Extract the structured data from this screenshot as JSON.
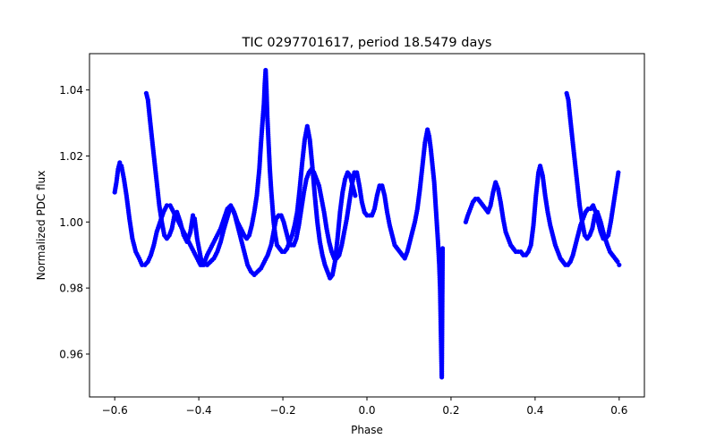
{
  "chart_data": {
    "type": "scatter",
    "title": "TIC 0297701617, period 18.5479 days",
    "xlabel": "Phase",
    "ylabel": "Normalized PDC flux",
    "xlim": [
      -0.66,
      0.66
    ],
    "ylim": [
      0.947,
      1.051
    ],
    "xticks": [
      -0.6,
      -0.4,
      -0.2,
      0.0,
      0.2,
      0.4,
      0.6
    ],
    "xtick_labels": [
      "−0.6",
      "−0.4",
      "−0.2",
      "0.0",
      "0.2",
      "0.4",
      "0.6"
    ],
    "yticks": [
      0.96,
      0.98,
      1.0,
      1.02,
      1.04
    ],
    "ytick_labels": [
      "0.96",
      "0.98",
      "1.00",
      "1.02",
      "1.04"
    ],
    "grid": false,
    "marker_color": "#0000ff",
    "series": [
      {
        "points": [
          [
            -0.6,
            1.009
          ],
          [
            -0.596,
            1.012
          ],
          [
            -0.592,
            1.016
          ],
          [
            -0.588,
            1.018
          ],
          [
            -0.584,
            1.017
          ],
          [
            -0.578,
            1.013
          ],
          [
            -0.572,
            1.008
          ],
          [
            -0.565,
            1.001
          ],
          [
            -0.558,
            0.995
          ],
          [
            -0.55,
            0.991
          ],
          [
            -0.542,
            0.989
          ],
          [
            -0.535,
            0.987
          ],
          [
            -0.528,
            0.987
          ],
          [
            -0.521,
            0.988
          ],
          [
            -0.514,
            0.99
          ],
          [
            -0.507,
            0.993
          ],
          [
            -0.5,
            0.997
          ],
          [
            -0.492,
            1.0
          ],
          [
            -0.484,
            1.003
          ],
          [
            -0.476,
            1.005
          ],
          [
            -0.468,
            1.005
          ],
          [
            -0.46,
            1.003
          ],
          [
            -0.452,
            1.001
          ],
          [
            -0.444,
            0.999
          ],
          [
            -0.436,
            0.997
          ],
          [
            -0.428,
            0.995
          ],
          [
            -0.42,
            0.993
          ],
          [
            -0.412,
            0.991
          ],
          [
            -0.404,
            0.989
          ],
          [
            -0.396,
            0.987
          ],
          [
            -0.388,
            0.987
          ],
          [
            -0.38,
            0.987
          ],
          [
            -0.372,
            0.988
          ],
          [
            -0.364,
            0.989
          ],
          [
            -0.356,
            0.991
          ],
          [
            -0.348,
            0.994
          ],
          [
            -0.34,
            0.998
          ],
          [
            -0.333,
            1.001
          ],
          [
            -0.326,
            1.004
          ],
          [
            -0.32,
            1.004
          ],
          [
            -0.314,
            1.002
          ],
          [
            -0.308,
            0.999
          ],
          [
            -0.3,
            0.995
          ],
          [
            -0.292,
            0.991
          ],
          [
            -0.284,
            0.987
          ],
          [
            -0.276,
            0.985
          ],
          [
            -0.268,
            0.984
          ],
          [
            -0.26,
            0.985
          ],
          [
            -0.252,
            0.986
          ],
          [
            -0.244,
            0.988
          ],
          [
            -0.236,
            0.99
          ],
          [
            -0.228,
            0.993
          ],
          [
            -0.222,
            0.997
          ],
          [
            -0.216,
            1.001
          ],
          [
            -0.21,
            1.002
          ],
          [
            -0.204,
            1.002
          ],
          [
            -0.198,
            1.0
          ],
          [
            -0.192,
            0.997
          ],
          [
            -0.186,
            0.994
          ],
          [
            -0.18,
            0.993
          ],
          [
            -0.174,
            0.993
          ],
          [
            -0.168,
            0.995
          ],
          [
            -0.162,
            0.999
          ],
          [
            -0.156,
            1.004
          ],
          [
            -0.15,
            1.009
          ],
          [
            -0.144,
            1.013
          ],
          [
            -0.138,
            1.015
          ],
          [
            -0.132,
            1.016
          ],
          [
            -0.126,
            1.015
          ],
          [
            -0.12,
            1.013
          ],
          [
            -0.114,
            1.011
          ],
          [
            -0.108,
            1.007
          ],
          [
            -0.102,
            1.003
          ],
          [
            -0.096,
            0.998
          ],
          [
            -0.09,
            0.994
          ],
          [
            -0.084,
            0.991
          ],
          [
            -0.078,
            0.989
          ],
          [
            -0.072,
            0.989
          ],
          [
            -0.066,
            0.99
          ],
          [
            -0.06,
            0.993
          ],
          [
            -0.054,
            0.997
          ],
          [
            -0.048,
            1.001
          ],
          [
            -0.042,
            1.006
          ],
          [
            -0.036,
            1.011
          ],
          [
            -0.03,
            1.015
          ],
          [
            -0.024,
            1.015
          ],
          [
            -0.018,
            1.011
          ],
          [
            -0.012,
            1.006
          ],
          [
            -0.006,
            1.003
          ],
          [
            0.0,
            1.002
          ],
          [
            0.006,
            1.002
          ],
          [
            0.012,
            1.002
          ],
          [
            0.018,
            1.004
          ],
          [
            0.024,
            1.008
          ],
          [
            0.03,
            1.011
          ],
          [
            0.036,
            1.011
          ],
          [
            0.042,
            1.008
          ],
          [
            0.048,
            1.003
          ],
          [
            0.054,
            0.999
          ],
          [
            0.06,
            0.996
          ],
          [
            0.066,
            0.993
          ],
          [
            0.072,
            0.992
          ],
          [
            0.078,
            0.991
          ],
          [
            0.084,
            0.99
          ],
          [
            0.09,
            0.989
          ],
          [
            0.096,
            0.991
          ],
          [
            0.102,
            0.994
          ],
          [
            0.108,
            0.997
          ],
          [
            0.114,
            1.0
          ],
          [
            0.12,
            1.004
          ],
          [
            0.126,
            1.01
          ],
          [
            0.132,
            1.017
          ],
          [
            0.138,
            1.024
          ],
          [
            0.144,
            1.028
          ],
          [
            0.148,
            1.026
          ],
          [
            0.152,
            1.022
          ],
          [
            0.156,
            1.017
          ],
          [
            0.16,
            1.012
          ],
          [
            0.163,
            1.006
          ],
          [
            0.166,
            1.0
          ],
          [
            0.169,
            0.994
          ],
          [
            0.172,
            0.987
          ],
          [
            0.174,
            0.98
          ],
          [
            0.175,
            0.973
          ],
          [
            0.176,
            0.966
          ],
          [
            0.177,
            0.959
          ],
          [
            0.178,
            0.953
          ],
          [
            0.18,
            0.992
          ],
          [
            0.235,
            1.0
          ],
          [
            0.24,
            1.002
          ],
          [
            0.246,
            1.004
          ],
          [
            0.252,
            1.006
          ],
          [
            0.258,
            1.007
          ],
          [
            0.264,
            1.007
          ],
          [
            0.27,
            1.006
          ],
          [
            0.276,
            1.005
          ],
          [
            0.282,
            1.004
          ],
          [
            0.288,
            1.003
          ],
          [
            0.294,
            1.005
          ],
          [
            0.3,
            1.009
          ],
          [
            0.306,
            1.012
          ],
          [
            0.312,
            1.01
          ],
          [
            0.318,
            1.006
          ],
          [
            0.324,
            1.001
          ],
          [
            0.33,
            0.997
          ],
          [
            0.336,
            0.995
          ],
          [
            0.342,
            0.993
          ],
          [
            0.348,
            0.992
          ],
          [
            0.354,
            0.991
          ],
          [
            0.36,
            0.991
          ],
          [
            0.366,
            0.991
          ],
          [
            0.372,
            0.99
          ],
          [
            0.378,
            0.99
          ],
          [
            0.384,
            0.991
          ],
          [
            0.39,
            0.993
          ],
          [
            0.396,
            0.999
          ],
          [
            0.402,
            1.008
          ],
          [
            0.408,
            1.015
          ],
          [
            0.412,
            1.017
          ],
          [
            0.418,
            1.014
          ],
          [
            0.424,
            1.008
          ],
          [
            0.43,
            1.003
          ],
          [
            0.436,
            0.999
          ],
          [
            0.442,
            0.996
          ],
          [
            0.448,
            0.993
          ],
          [
            0.454,
            0.991
          ],
          [
            0.46,
            0.989
          ],
          [
            0.466,
            0.988
          ],
          [
            0.472,
            0.987
          ],
          [
            0.478,
            0.987
          ],
          [
            0.484,
            0.988
          ],
          [
            0.49,
            0.99
          ],
          [
            0.496,
            0.993
          ],
          [
            0.502,
            0.996
          ],
          [
            0.508,
            0.999
          ],
          [
            0.514,
            1.001
          ],
          [
            0.52,
            1.003
          ],
          [
            0.526,
            1.004
          ],
          [
            0.532,
            1.004
          ],
          [
            0.538,
            1.005
          ],
          [
            0.544,
            1.003
          ],
          [
            0.55,
            1.0
          ],
          [
            0.556,
            0.997
          ],
          [
            0.562,
            0.995
          ],
          [
            0.568,
            0.995
          ],
          [
            0.574,
            0.996
          ],
          [
            0.58,
            1.0
          ],
          [
            0.586,
            1.005
          ],
          [
            0.592,
            1.01
          ],
          [
            0.598,
            1.015
          ]
        ]
      },
      {
        "points": [
          [
            -0.525,
            1.039
          ],
          [
            -0.521,
            1.037
          ],
          [
            -0.517,
            1.032
          ],
          [
            -0.512,
            1.026
          ],
          [
            -0.506,
            1.019
          ],
          [
            -0.5,
            1.012
          ],
          [
            -0.494,
            1.005
          ],
          [
            -0.488,
            1.0
          ],
          [
            -0.482,
            0.996
          ],
          [
            -0.476,
            0.995
          ],
          [
            -0.47,
            0.996
          ],
          [
            -0.464,
            0.998
          ],
          [
            -0.458,
            1.002
          ],
          [
            -0.452,
            1.003
          ],
          [
            -0.444,
            1.0
          ],
          [
            -0.436,
            0.996
          ],
          [
            -0.428,
            0.994
          ],
          [
            -0.42,
            0.997
          ],
          [
            -0.414,
            1.002
          ],
          [
            -0.41,
            1.001
          ],
          [
            -0.404,
            0.995
          ],
          [
            -0.398,
            0.991
          ],
          [
            -0.392,
            0.987
          ],
          [
            -0.386,
            0.988
          ],
          [
            -0.38,
            0.99
          ],
          [
            -0.372,
            0.992
          ],
          [
            -0.364,
            0.994
          ],
          [
            -0.356,
            0.996
          ],
          [
            -0.348,
            0.998
          ],
          [
            -0.34,
            1.001
          ],
          [
            -0.332,
            1.004
          ],
          [
            -0.324,
            1.005
          ],
          [
            -0.316,
            1.003
          ],
          [
            -0.308,
            1.0
          ],
          [
            -0.3,
            0.998
          ],
          [
            -0.292,
            0.996
          ],
          [
            -0.286,
            0.995
          ],
          [
            -0.28,
            0.996
          ],
          [
            -0.274,
            0.999
          ],
          [
            -0.268,
            1.003
          ],
          [
            -0.262,
            1.008
          ],
          [
            -0.256,
            1.016
          ],
          [
            -0.252,
            1.024
          ],
          [
            -0.248,
            1.031
          ],
          [
            -0.245,
            1.036
          ],
          [
            -0.243,
            1.042
          ],
          [
            -0.241,
            1.046
          ],
          [
            -0.239,
            1.04
          ],
          [
            -0.237,
            1.032
          ],
          [
            -0.234,
            1.024
          ],
          [
            -0.231,
            1.016
          ],
          [
            -0.228,
            1.01
          ],
          [
            -0.225,
            1.005
          ],
          [
            -0.222,
            1.0
          ],
          [
            -0.218,
            0.996
          ],
          [
            -0.214,
            0.993
          ],
          [
            -0.208,
            0.992
          ],
          [
            -0.202,
            0.991
          ],
          [
            -0.196,
            0.991
          ],
          [
            -0.19,
            0.992
          ],
          [
            -0.184,
            0.994
          ],
          [
            -0.178,
            0.996
          ],
          [
            -0.172,
            0.999
          ],
          [
            -0.166,
            1.003
          ],
          [
            -0.16,
            1.01
          ],
          [
            -0.154,
            1.018
          ],
          [
            -0.148,
            1.025
          ],
          [
            -0.142,
            1.029
          ],
          [
            -0.136,
            1.025
          ],
          [
            -0.13,
            1.017
          ],
          [
            -0.124,
            1.008
          ],
          [
            -0.118,
            1.0
          ],
          [
            -0.112,
            0.994
          ],
          [
            -0.106,
            0.99
          ],
          [
            -0.1,
            0.987
          ],
          [
            -0.094,
            0.985
          ],
          [
            -0.088,
            0.983
          ],
          [
            -0.082,
            0.984
          ],
          [
            -0.076,
            0.988
          ],
          [
            -0.07,
            0.995
          ],
          [
            -0.064,
            1.003
          ],
          [
            -0.058,
            1.009
          ],
          [
            -0.052,
            1.013
          ],
          [
            -0.046,
            1.015
          ],
          [
            -0.04,
            1.014
          ],
          [
            -0.034,
            1.011
          ],
          [
            -0.028,
            1.008
          ]
        ]
      },
      {
        "points": [
          [
            0.475,
            1.039
          ],
          [
            0.479,
            1.037
          ],
          [
            0.483,
            1.032
          ],
          [
            0.488,
            1.026
          ],
          [
            0.494,
            1.019
          ],
          [
            0.5,
            1.012
          ],
          [
            0.506,
            1.005
          ],
          [
            0.512,
            1.0
          ],
          [
            0.518,
            0.996
          ],
          [
            0.524,
            0.995
          ],
          [
            0.53,
            0.996
          ],
          [
            0.536,
            0.998
          ],
          [
            0.542,
            1.002
          ],
          [
            0.548,
            1.003
          ],
          [
            0.556,
            1.0
          ],
          [
            0.564,
            0.996
          ],
          [
            0.572,
            0.993
          ],
          [
            0.578,
            0.991
          ],
          [
            0.584,
            0.99
          ],
          [
            0.59,
            0.989
          ],
          [
            0.596,
            0.988
          ],
          [
            0.6,
            0.987
          ]
        ]
      }
    ]
  }
}
